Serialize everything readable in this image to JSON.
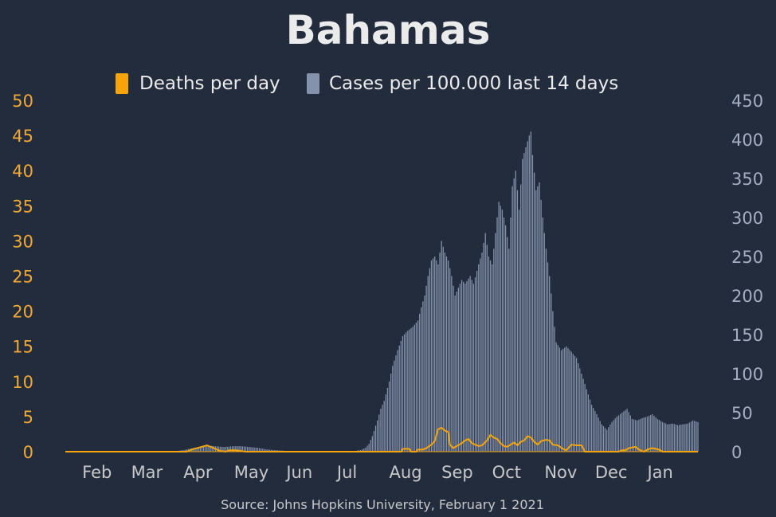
{
  "chart_data": {
    "type": "bar",
    "title": "Bahamas",
    "source": "Source: Johns Hopkins University, February 1 2021",
    "colors": {
      "background": "#232c3d",
      "title": "#ebebeb",
      "deaths": "#f5a50a",
      "cases": "#8592ac",
      "left_axis": "#f0a836",
      "right_axis": "#a4afc4",
      "x_axis": "#c8c8c8",
      "source": "#c8c8c8"
    },
    "legend": {
      "position": "top-center",
      "entries": [
        {
          "label": "Deaths per day",
          "color": "#f5a50a"
        },
        {
          "label": "Cases per 100.000 last 14 days",
          "color": "#8592ac"
        }
      ]
    },
    "x_axis": {
      "start_date": "2020-01-22",
      "end_date": "2021-01-31",
      "tick_labels": [
        "Feb",
        "Mar",
        "Apr",
        "May",
        "Jun",
        "Jul",
        "Aug",
        "Sep",
        "Oct",
        "Nov",
        "Dec",
        "Jan"
      ],
      "tick_dates": [
        "2020-02-01",
        "2020-03-01",
        "2020-04-01",
        "2020-05-01",
        "2020-06-01",
        "2020-07-01",
        "2020-08-01",
        "2020-09-01",
        "2020-10-01",
        "2020-11-01",
        "2020-12-01",
        "2021-01-01"
      ]
    },
    "y_left": {
      "series": "Deaths per day",
      "range": [
        0,
        50
      ],
      "ticks": [
        "0",
        "5",
        "10",
        "15",
        "20",
        "25",
        "30",
        "35",
        "40",
        "45",
        "50"
      ]
    },
    "y_right": {
      "series": "Cases per 100.000 last 14 days",
      "range": [
        0,
        450
      ],
      "ticks": [
        "0",
        "50",
        "100",
        "150",
        "200",
        "250",
        "300",
        "350",
        "400",
        "450"
      ]
    },
    "series": [
      {
        "name": "Cases per 100.000 last 14 days",
        "axis": "right",
        "style": "bars",
        "points": [
          [
            "2020-01-22",
            0
          ],
          [
            "2020-03-25",
            0
          ],
          [
            "2020-04-01",
            2
          ],
          [
            "2020-04-05",
            4
          ],
          [
            "2020-04-10",
            6
          ],
          [
            "2020-04-15",
            8
          ],
          [
            "2020-04-20",
            7
          ],
          [
            "2020-04-25",
            6
          ],
          [
            "2020-05-01",
            7
          ],
          [
            "2020-05-05",
            7
          ],
          [
            "2020-05-10",
            6
          ],
          [
            "2020-05-15",
            5
          ],
          [
            "2020-05-20",
            3
          ],
          [
            "2020-05-25",
            2
          ],
          [
            "2020-06-01",
            1
          ],
          [
            "2020-06-10",
            0
          ],
          [
            "2020-07-08",
            0
          ],
          [
            "2020-07-15",
            2
          ],
          [
            "2020-07-18",
            5
          ],
          [
            "2020-07-20",
            10
          ],
          [
            "2020-07-22",
            20
          ],
          [
            "2020-07-25",
            40
          ],
          [
            "2020-07-27",
            55
          ],
          [
            "2020-07-29",
            65
          ],
          [
            "2020-08-01",
            90
          ],
          [
            "2020-08-03",
            110
          ],
          [
            "2020-08-06",
            130
          ],
          [
            "2020-08-09",
            148
          ],
          [
            "2020-08-12",
            155
          ],
          [
            "2020-08-15",
            160
          ],
          [
            "2020-08-18",
            168
          ],
          [
            "2020-08-20",
            185
          ],
          [
            "2020-08-22",
            200
          ],
          [
            "2020-08-24",
            225
          ],
          [
            "2020-08-26",
            245
          ],
          [
            "2020-08-28",
            250
          ],
          [
            "2020-08-30",
            240
          ],
          [
            "2020-09-01",
            270
          ],
          [
            "2020-09-03",
            255
          ],
          [
            "2020-09-05",
            245
          ],
          [
            "2020-09-07",
            225
          ],
          [
            "2020-09-09",
            200
          ],
          [
            "2020-09-11",
            210
          ],
          [
            "2020-09-13",
            220
          ],
          [
            "2020-09-15",
            215
          ],
          [
            "2020-09-18",
            225
          ],
          [
            "2020-09-20",
            215
          ],
          [
            "2020-09-23",
            240
          ],
          [
            "2020-09-25",
            255
          ],
          [
            "2020-09-27",
            280
          ],
          [
            "2020-09-29",
            250
          ],
          [
            "2020-10-01",
            240
          ],
          [
            "2020-10-03",
            280
          ],
          [
            "2020-10-05",
            320
          ],
          [
            "2020-10-07",
            310
          ],
          [
            "2020-10-09",
            290
          ],
          [
            "2020-10-11",
            260
          ],
          [
            "2020-10-13",
            340
          ],
          [
            "2020-10-15",
            360
          ],
          [
            "2020-10-17",
            310
          ],
          [
            "2020-10-19",
            375
          ],
          [
            "2020-10-21",
            390
          ],
          [
            "2020-10-23",
            405
          ],
          [
            "2020-10-24",
            410
          ],
          [
            "2020-10-25",
            380
          ],
          [
            "2020-10-27",
            335
          ],
          [
            "2020-10-29",
            345
          ],
          [
            "2020-10-31",
            300
          ],
          [
            "2020-11-02",
            260
          ],
          [
            "2020-11-04",
            225
          ],
          [
            "2020-11-06",
            180
          ],
          [
            "2020-11-08",
            140
          ],
          [
            "2020-11-11",
            130
          ],
          [
            "2020-11-14",
            135
          ],
          [
            "2020-11-17",
            128
          ],
          [
            "2020-11-20",
            120
          ],
          [
            "2020-11-23",
            100
          ],
          [
            "2020-11-26",
            80
          ],
          [
            "2020-11-29",
            60
          ],
          [
            "2020-12-02",
            48
          ],
          [
            "2020-12-05",
            35
          ],
          [
            "2020-12-08",
            28
          ],
          [
            "2020-12-11",
            38
          ],
          [
            "2020-12-14",
            45
          ],
          [
            "2020-12-17",
            50
          ],
          [
            "2020-12-20",
            55
          ],
          [
            "2020-12-23",
            42
          ],
          [
            "2020-12-26",
            40
          ],
          [
            "2020-12-29",
            43
          ],
          [
            "2021-01-01",
            45
          ],
          [
            "2021-01-04",
            48
          ],
          [
            "2021-01-07",
            42
          ],
          [
            "2021-01-10",
            38
          ],
          [
            "2021-01-13",
            35
          ],
          [
            "2021-01-16",
            36
          ],
          [
            "2021-01-19",
            34
          ],
          [
            "2021-01-22",
            35
          ],
          [
            "2021-01-25",
            36
          ],
          [
            "2021-01-28",
            40
          ],
          [
            "2021-01-31",
            38
          ]
        ]
      },
      {
        "name": "Deaths per day",
        "axis": "left",
        "style": "line",
        "points": [
          [
            "2020-01-22",
            0
          ],
          [
            "2020-04-03",
            0
          ],
          [
            "2020-04-06",
            0.3
          ],
          [
            "2020-04-09",
            0.5
          ],
          [
            "2020-04-12",
            0.7
          ],
          [
            "2020-04-15",
            0.9
          ],
          [
            "2020-04-18",
            0.6
          ],
          [
            "2020-04-21",
            0.3
          ],
          [
            "2020-04-23",
            0.1
          ],
          [
            "2020-04-26",
            0
          ],
          [
            "2020-04-28",
            0.2
          ],
          [
            "2020-05-02",
            0.2
          ],
          [
            "2020-05-05",
            0.1
          ],
          [
            "2020-05-08",
            0
          ],
          [
            "2020-08-08",
            0
          ],
          [
            "2020-08-09",
            0.4
          ],
          [
            "2020-08-13",
            0.4
          ],
          [
            "2020-08-14",
            0
          ],
          [
            "2020-08-17",
            0
          ],
          [
            "2020-08-18",
            0.3
          ],
          [
            "2020-08-21",
            0.3
          ],
          [
            "2020-08-23",
            0.5
          ],
          [
            "2020-08-26",
            1.0
          ],
          [
            "2020-08-28",
            1.5
          ],
          [
            "2020-08-30",
            3.2
          ],
          [
            "2020-09-01",
            3.4
          ],
          [
            "2020-09-03",
            3.0
          ],
          [
            "2020-09-05",
            2.8
          ],
          [
            "2020-09-06",
            1.0
          ],
          [
            "2020-09-08",
            0.5
          ],
          [
            "2020-09-10",
            0.8
          ],
          [
            "2020-09-13",
            1.2
          ],
          [
            "2020-09-15",
            1.6
          ],
          [
            "2020-09-17",
            1.8
          ],
          [
            "2020-09-19",
            1.2
          ],
          [
            "2020-09-21",
            1.0
          ],
          [
            "2020-09-23",
            0.8
          ],
          [
            "2020-09-25",
            0.9
          ],
          [
            "2020-09-28",
            1.6
          ],
          [
            "2020-09-30",
            2.4
          ],
          [
            "2020-10-02",
            2.0
          ],
          [
            "2020-10-04",
            1.8
          ],
          [
            "2020-10-06",
            1.2
          ],
          [
            "2020-10-08",
            0.8
          ],
          [
            "2020-10-10",
            0.7
          ],
          [
            "2020-10-12",
            1.0
          ],
          [
            "2020-10-14",
            1.3
          ],
          [
            "2020-10-16",
            0.9
          ],
          [
            "2020-10-18",
            1.4
          ],
          [
            "2020-10-20",
            1.6
          ],
          [
            "2020-10-22",
            2.2
          ],
          [
            "2020-10-24",
            2.0
          ],
          [
            "2020-10-26",
            1.4
          ],
          [
            "2020-10-28",
            1.0
          ],
          [
            "2020-10-30",
            1.5
          ],
          [
            "2020-11-02",
            1.7
          ],
          [
            "2020-11-04",
            1.6
          ],
          [
            "2020-11-06",
            1.0
          ],
          [
            "2020-11-09",
            0.9
          ],
          [
            "2020-11-12",
            0.4
          ],
          [
            "2020-11-14",
            0.2
          ],
          [
            "2020-11-17",
            1.0
          ],
          [
            "2020-11-20",
            0.9
          ],
          [
            "2020-11-23",
            0.9
          ],
          [
            "2020-11-25",
            0
          ],
          [
            "2020-12-15",
            0
          ],
          [
            "2020-12-17",
            0.2
          ],
          [
            "2020-12-19",
            0.2
          ],
          [
            "2020-12-21",
            0.5
          ],
          [
            "2020-12-25",
            0.7
          ],
          [
            "2020-12-27",
            0.3
          ],
          [
            "2020-12-30",
            0
          ],
          [
            "2021-01-01",
            0.3
          ],
          [
            "2021-01-04",
            0.5
          ],
          [
            "2021-01-08",
            0.3
          ],
          [
            "2021-01-10",
            0
          ],
          [
            "2021-01-31",
            0
          ]
        ]
      }
    ]
  }
}
